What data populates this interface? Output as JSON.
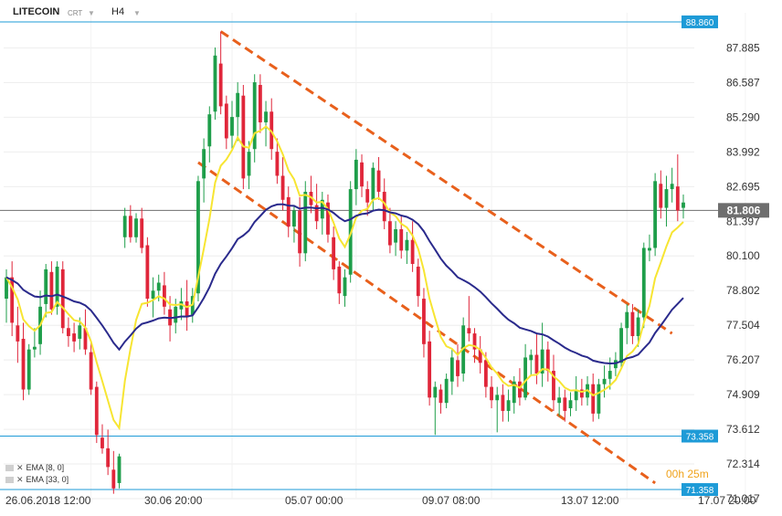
{
  "header": {
    "symbol": "LITECOIN",
    "chart_style": "CRT",
    "timeframe": "H4"
  },
  "indicators": [
    {
      "label": "EMA",
      "params": "[8, 0]",
      "color": "#f7e532"
    },
    {
      "label": "EMA",
      "params": "[33, 0]",
      "color": "#2a2a8c"
    }
  ],
  "timer": "00h 25m",
  "colors": {
    "up": "#1e9e4a",
    "down": "#e0263a",
    "ema_fast": "#f7e532",
    "ema_slow": "#2a2a8c",
    "channel": "#e8601c",
    "level": "#1e9bd7",
    "current": "#6e6e6e"
  },
  "chart_data": {
    "type": "candlestick",
    "title": "",
    "instrument": "LITECOIN",
    "timeframe": "H4",
    "x_tick_labels": [
      "26.06.2018 12:00",
      "30.06 20:00",
      "05.07 00:00",
      "09.07 08:00",
      "13.07 12:00",
      "17.07 20:00"
    ],
    "y_tick_labels": [
      "87.885",
      "86.587",
      "85.290",
      "83.992",
      "82.695",
      "81.397",
      "80.100",
      "78.802",
      "77.504",
      "76.207",
      "74.909",
      "73.612",
      "72.314",
      "71.017"
    ],
    "ylim": [
      71.017,
      89.2
    ],
    "levels": [
      {
        "value": 88.86,
        "label": "88.860"
      },
      {
        "value": 73.358,
        "label": "73.358"
      },
      {
        "value": 71.358,
        "label": "71.358"
      }
    ],
    "current_price": {
      "value": 81.806,
      "label": "81.806"
    },
    "channel_lines": [
      {
        "from": {
          "index": 38,
          "price": 88.5
        },
        "to": {
          "index": 118,
          "price": 77.2
        }
      },
      {
        "from": {
          "index": 34,
          "price": 83.6
        },
        "to": {
          "index": 115,
          "price": 71.6
        }
      }
    ],
    "candles": [
      [
        78.5,
        79.6,
        77.6,
        79.3
      ],
      [
        79.3,
        79.9,
        77.1,
        77.6
      ],
      [
        77.5,
        78.2,
        76.1,
        76.9
      ],
      [
        77.0,
        77.6,
        74.7,
        75.1
      ],
      [
        75.1,
        76.8,
        74.9,
        76.6
      ],
      [
        76.6,
        77.4,
        76.3,
        76.7
      ],
      [
        76.8,
        78.8,
        76.4,
        78.2
      ],
      [
        78.3,
        79.8,
        77.8,
        79.6
      ],
      [
        79.5,
        79.9,
        77.9,
        78.1
      ],
      [
        78.2,
        79.9,
        77.9,
        79.7
      ],
      [
        79.6,
        79.9,
        77.2,
        77.4
      ],
      [
        77.4,
        77.8,
        76.7,
        77.1
      ],
      [
        77.2,
        77.6,
        76.5,
        76.9
      ],
      [
        77.0,
        77.8,
        76.6,
        77.5
      ],
      [
        77.4,
        78.1,
        76.4,
        76.6
      ],
      [
        76.5,
        76.9,
        74.9,
        75.1
      ],
      [
        75.2,
        75.4,
        73.1,
        73.4
      ],
      [
        73.3,
        73.8,
        72.7,
        72.9
      ],
      [
        72.9,
        73.6,
        71.9,
        72.2
      ],
      [
        72.1,
        72.8,
        71.2,
        71.4
      ],
      [
        71.6,
        72.7,
        71.4,
        72.6
      ],
      [
        80.8,
        81.9,
        80.4,
        81.6
      ],
      [
        81.6,
        82.0,
        80.6,
        80.8
      ],
      [
        80.8,
        81.7,
        80.6,
        81.5
      ],
      [
        81.5,
        81.9,
        80.2,
        80.4
      ],
      [
        80.5,
        80.8,
        78.2,
        78.5
      ],
      [
        78.5,
        79.3,
        77.8,
        78.8
      ],
      [
        78.8,
        79.4,
        78.4,
        79.1
      ],
      [
        79.0,
        79.5,
        77.9,
        78.2
      ],
      [
        78.1,
        78.6,
        76.9,
        77.5
      ],
      [
        77.6,
        78.5,
        77.2,
        78.2
      ],
      [
        78.1,
        78.9,
        77.7,
        78.4
      ],
      [
        78.4,
        79.2,
        77.3,
        77.8
      ],
      [
        77.9,
        78.9,
        77.6,
        78.6
      ],
      [
        78.7,
        83.1,
        78.4,
        82.9
      ],
      [
        83.0,
        84.5,
        82.1,
        84.1
      ],
      [
        84.2,
        85.7,
        83.6,
        85.4
      ],
      [
        85.5,
        87.9,
        85.2,
        87.6
      ],
      [
        87.3,
        88.5,
        85.4,
        85.7
      ],
      [
        85.8,
        86.1,
        84.1,
        84.5
      ],
      [
        84.6,
        85.9,
        84.1,
        85.3
      ],
      [
        85.3,
        86.6,
        84.4,
        86.2
      ],
      [
        86.1,
        86.5,
        82.6,
        83.0
      ],
      [
        83.1,
        84.4,
        82.6,
        84.0
      ],
      [
        84.1,
        86.9,
        83.6,
        86.6
      ],
      [
        86.5,
        86.9,
        84.7,
        85.1
      ],
      [
        85.1,
        85.9,
        84.2,
        85.5
      ],
      [
        85.5,
        86.0,
        83.7,
        84.1
      ],
      [
        84.0,
        84.5,
        82.8,
        83.1
      ],
      [
        83.1,
        83.8,
        81.8,
        82.2
      ],
      [
        82.3,
        82.7,
        80.8,
        81.2
      ],
      [
        81.2,
        82.0,
        80.6,
        81.8
      ],
      [
        81.8,
        82.3,
        79.7,
        80.2
      ],
      [
        80.2,
        82.9,
        79.9,
        82.5
      ],
      [
        82.5,
        83.1,
        81.7,
        82.0
      ],
      [
        82.0,
        82.8,
        81.1,
        81.4
      ],
      [
        81.5,
        82.5,
        80.9,
        82.2
      ],
      [
        82.1,
        82.4,
        80.6,
        80.9
      ],
      [
        80.8,
        81.2,
        79.2,
        79.6
      ],
      [
        79.7,
        79.9,
        78.3,
        78.7
      ],
      [
        78.6,
        79.6,
        78.2,
        79.3
      ],
      [
        79.4,
        82.9,
        79.1,
        82.6
      ],
      [
        82.6,
        84.1,
        82.0,
        83.7
      ],
      [
        83.6,
        83.9,
        82.3,
        82.7
      ],
      [
        82.6,
        82.9,
        81.6,
        82.1
      ],
      [
        82.2,
        83.6,
        81.8,
        83.4
      ],
      [
        83.3,
        83.8,
        82.2,
        82.5
      ],
      [
        82.5,
        83.0,
        81.1,
        81.4
      ],
      [
        81.4,
        81.9,
        80.2,
        80.5
      ],
      [
        80.6,
        81.4,
        80.1,
        81.1
      ],
      [
        81.1,
        81.6,
        80.0,
        80.3
      ],
      [
        80.3,
        81.0,
        79.8,
        80.7
      ],
      [
        80.7,
        81.4,
        79.5,
        79.8
      ],
      [
        79.7,
        80.0,
        78.2,
        78.6
      ],
      [
        78.5,
        78.9,
        76.3,
        76.8
      ],
      [
        76.9,
        77.3,
        74.5,
        74.8
      ],
      [
        74.8,
        75.4,
        73.4,
        75.2
      ],
      [
        75.1,
        75.3,
        74.2,
        74.6
      ],
      [
        74.6,
        75.7,
        74.4,
        75.5
      ],
      [
        75.4,
        76.6,
        74.9,
        76.3
      ],
      [
        76.2,
        76.8,
        75.2,
        75.6
      ],
      [
        75.7,
        77.8,
        75.4,
        77.5
      ],
      [
        77.4,
        78.6,
        76.9,
        77.2
      ],
      [
        77.2,
        77.4,
        76.1,
        76.6
      ],
      [
        76.6,
        77.1,
        75.7,
        76.1
      ],
      [
        76.2,
        76.5,
        74.8,
        75.2
      ],
      [
        75.2,
        75.6,
        74.4,
        74.7
      ],
      [
        74.7,
        75.2,
        73.5,
        74.9
      ],
      [
        74.9,
        75.3,
        73.9,
        74.3
      ],
      [
        74.3,
        75.1,
        73.9,
        74.7
      ],
      [
        74.6,
        75.6,
        74.2,
        75.4
      ],
      [
        75.4,
        75.9,
        74.5,
        74.8
      ],
      [
        74.8,
        76.8,
        74.7,
        76.3
      ],
      [
        76.2,
        76.6,
        75.6,
        76.4
      ],
      [
        76.4,
        77.2,
        75.3,
        75.7
      ],
      [
        75.7,
        77.6,
        75.2,
        76.6
      ],
      [
        76.6,
        76.9,
        75.4,
        75.8
      ],
      [
        75.8,
        76.4,
        74.3,
        74.7
      ],
      [
        74.6,
        75.2,
        74.1,
        74.8
      ],
      [
        74.8,
        75.1,
        73.9,
        74.3
      ],
      [
        74.4,
        75.0,
        74.1,
        74.7
      ],
      [
        74.7,
        75.6,
        74.3,
        75.1
      ],
      [
        75.1,
        75.5,
        74.5,
        74.8
      ],
      [
        74.8,
        75.6,
        74.5,
        75.3
      ],
      [
        75.3,
        75.7,
        73.9,
        74.2
      ],
      [
        74.2,
        75.5,
        74.0,
        75.3
      ],
      [
        75.3,
        76.0,
        74.8,
        75.5
      ],
      [
        75.5,
        76.3,
        75.1,
        75.8
      ],
      [
        75.9,
        76.5,
        75.6,
        76.2
      ],
      [
        76.1,
        77.6,
        75.9,
        77.4
      ],
      [
        77.4,
        78.3,
        76.8,
        78.0
      ],
      [
        78.0,
        78.3,
        76.8,
        77.1
      ],
      [
        77.1,
        78.1,
        76.7,
        77.8
      ],
      [
        77.8,
        80.6,
        77.4,
        80.4
      ],
      [
        80.3,
        80.9,
        79.9,
        80.4
      ],
      [
        80.4,
        83.2,
        80.1,
        82.9
      ],
      [
        82.8,
        83.3,
        81.5,
        81.9
      ],
      [
        81.9,
        83.1,
        81.2,
        82.6
      ],
      [
        82.6,
        83.4,
        82.1,
        82.8
      ],
      [
        82.7,
        83.9,
        81.4,
        81.8
      ],
      [
        81.9,
        82.4,
        81.5,
        82.1
      ]
    ]
  }
}
